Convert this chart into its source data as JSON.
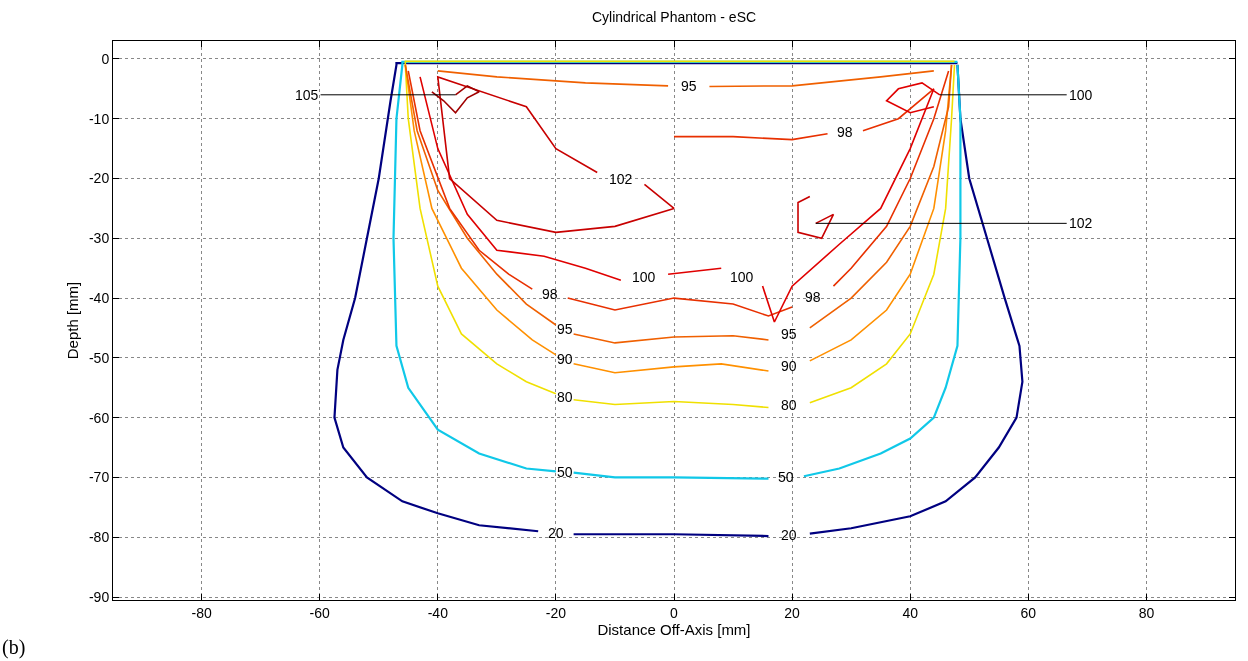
{
  "chart_data": {
    "type": "line",
    "title": "Cylindrical Phantom - eSC",
    "xlabel": "Distance Off-Axis [mm]",
    "ylabel": "Depth [mm]",
    "xlim": [
      -95,
      95
    ],
    "ylim": [
      -90.5,
      3
    ],
    "xticks": [
      -80,
      -60,
      -40,
      -20,
      0,
      20,
      40,
      60,
      80
    ],
    "yticks": [
      -90,
      -80,
      -70,
      -60,
      -50,
      -40,
      -30,
      -20,
      -10,
      0
    ],
    "grid": true,
    "marker": "none",
    "line_style": "solid",
    "series": [
      {
        "name": "20",
        "color": "#000080",
        "x": [
          48,
          -47,
          -47,
          -48,
          -50,
          -52,
          -54,
          -56,
          -57,
          -57.5,
          -56,
          -52,
          -46,
          -40,
          -33,
          -23,
          null,
          -17,
          0,
          16,
          null,
          23,
          30,
          40,
          46,
          51,
          55,
          58,
          59,
          58.5,
          56,
          53,
          50,
          48.5,
          48
        ],
        "values": [
          -0.7,
          -0.7,
          -1,
          -7,
          -20,
          -30,
          -40,
          -47,
          -52,
          -60,
          -65,
          -70,
          -74,
          -76,
          -78,
          -79,
          null,
          -79.5,
          -79.5,
          -79.8,
          null,
          -79.4,
          -78.5,
          -76.5,
          -74,
          -70,
          -65,
          -60,
          -54,
          -48,
          -40,
          -30,
          -20,
          -10,
          -1
        ]
      },
      {
        "name": "50",
        "color": "#10c8e8",
        "x": [
          48,
          -46,
          -46,
          -47,
          -47.5,
          -47,
          -45,
          -40,
          -33,
          -25,
          -20,
          null,
          -17,
          -10,
          0,
          16,
          null,
          22,
          28,
          35,
          40,
          44,
          46,
          48,
          48.5,
          48.5,
          48
        ],
        "values": [
          -0.5,
          -0.5,
          -1,
          -10,
          -30,
          -48,
          -55,
          -62,
          -66,
          -68.5,
          -69,
          null,
          -69.2,
          -70,
          -70,
          -70.2,
          null,
          -69.8,
          -68.5,
          -66,
          -63.5,
          -60,
          -55,
          -48,
          -30,
          -10,
          -1
        ]
      },
      {
        "name": "80",
        "color": "#f0e000",
        "x": [
          47.5,
          -45.5,
          -45.5,
          -45,
          -43,
          -40,
          -36,
          -30,
          -25,
          -20,
          null,
          -17,
          -10,
          0,
          10,
          16,
          null,
          23,
          30,
          36,
          40,
          44,
          46,
          47,
          47.5
        ],
        "values": [
          -0.4,
          -0.4,
          -1,
          -10,
          -25,
          -38,
          -46,
          -51,
          -54,
          -56,
          null,
          -57,
          -57.8,
          -57.3,
          -57.8,
          -58.3,
          null,
          -57.5,
          -55,
          -51,
          -46,
          -36,
          -25,
          -10,
          -1
        ]
      },
      {
        "name": "90",
        "color": "#ff9000",
        "x": [
          -45.5,
          -44,
          -41,
          -36,
          -30,
          -24,
          -20,
          null,
          -17,
          -10,
          0,
          8,
          16,
          null,
          23,
          30,
          36,
          40,
          44,
          46,
          47
        ],
        "values": [
          -1,
          -12,
          -25,
          -35,
          -42,
          -47,
          -49.5,
          null,
          -51,
          -52.5,
          -51.5,
          -51,
          -52.2,
          null,
          -50.5,
          -47,
          -42,
          -36,
          -25,
          -12,
          -1
        ]
      },
      {
        "name": "95",
        "color": "#f06000",
        "x": [
          -45.5,
          -43.5,
          -40,
          -35,
          -30,
          -25,
          -20,
          null,
          -17,
          -10,
          0,
          10,
          16,
          null,
          23,
          30,
          36,
          40,
          44,
          46.5,
          47
        ],
        "values": [
          -1,
          -12,
          -22,
          -30,
          -36,
          -41,
          -44.5,
          null,
          -46,
          -47.5,
          -46.5,
          -46.3,
          -47,
          null,
          -45,
          -40,
          -34,
          -28,
          -18,
          -8,
          -1
        ]
      },
      {
        "name": "95",
        "color": "#f06000",
        "x": [
          -40,
          -30,
          -15,
          -1,
          null,
          6,
          20,
          35,
          44
        ],
        "values": [
          -2,
          -3,
          -4,
          -4.5,
          null,
          -4.6,
          -4.5,
          -3,
          -2
        ]
      },
      {
        "name": "98",
        "color": "#e83000",
        "x": [
          -45,
          -43,
          -38,
          -33,
          -28,
          -24,
          null,
          -18,
          -10,
          0,
          10,
          16,
          20,
          null,
          27,
          30,
          36,
          40,
          44,
          46.5
        ],
        "values": [
          -2,
          -12,
          -25,
          -32,
          -36,
          -38.5,
          null,
          -40,
          -42,
          -40,
          -41,
          -43,
          -41.5,
          null,
          -38,
          -35,
          -28,
          -20,
          -10,
          -2
        ]
      },
      {
        "name": "98",
        "color": "#e83000",
        "x": [
          0,
          10,
          20,
          26,
          null,
          32,
          38,
          44
        ],
        "values": [
          -13,
          -13,
          -13.5,
          -12.5,
          null,
          -12,
          -10,
          -5
        ]
      },
      {
        "name": "100",
        "color": "#e00000",
        "x": [
          -43,
          -40,
          -35,
          -30,
          -22,
          -15,
          -9,
          null,
          -1,
          8,
          null,
          15,
          17,
          20,
          28,
          35,
          40,
          44
        ],
        "values": [
          -3,
          -15,
          -26,
          -32,
          -33,
          -35,
          -37,
          null,
          -36,
          -35,
          null,
          -38,
          -44,
          -38,
          -31,
          -25,
          -15,
          -5
        ]
      },
      {
        "name": "100",
        "color": "#e00000",
        "x": [
          45,
          42,
          38,
          36,
          40,
          44
        ],
        "values": [
          -6,
          -4,
          -5,
          -7,
          -9,
          -8
        ]
      },
      {
        "name": "102",
        "color": "#c80000",
        "x": [
          -5,
          0,
          -10,
          -20,
          -30,
          -38,
          -40,
          -25,
          -20,
          -13,
          null,
          -5
        ],
        "values": [
          -21,
          -25,
          -28,
          -29,
          -27,
          -20,
          -3,
          -8,
          -15,
          -19,
          null,
          -21
        ]
      },
      {
        "name": "102",
        "color": "#c80000",
        "x": [
          24,
          27,
          26,
          25,
          21,
          21,
          23
        ],
        "values": [
          -27.5,
          -26,
          -28,
          -30,
          -29,
          -24,
          -23
        ]
      },
      {
        "name": "105",
        "color": "#a00000",
        "x": [
          -37,
          -35,
          -33,
          -35,
          -37,
          -39,
          -41
        ],
        "values": [
          -6,
          -4.5,
          -5.5,
          -6.5,
          -9,
          -7,
          -5.5
        ]
      }
    ],
    "annotations": [
      "(b)"
    ]
  }
}
